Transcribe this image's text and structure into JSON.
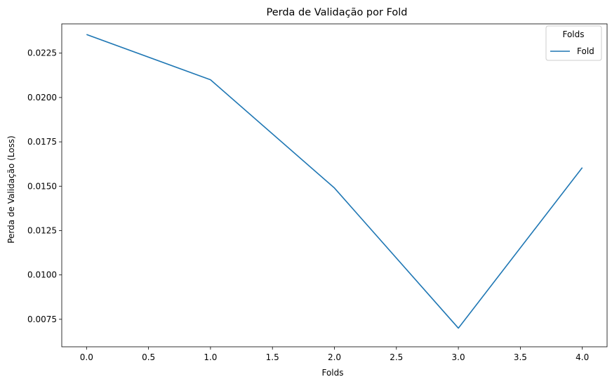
{
  "chart_data": {
    "type": "line",
    "title": "Perda de Validação por Fold",
    "xlabel": "Folds",
    "ylabel": "Perda de Validação (Loss)",
    "xlim": [
      -0.2,
      4.2
    ],
    "ylim": [
      0.00595,
      0.02415
    ],
    "x_ticks": [
      0.0,
      0.5,
      1.0,
      1.5,
      2.0,
      2.5,
      3.0,
      3.5,
      4.0
    ],
    "x_tick_labels": [
      "0.0",
      "0.5",
      "1.0",
      "1.5",
      "2.0",
      "2.5",
      "3.0",
      "3.5",
      "4.0"
    ],
    "y_ticks": [
      0.0075,
      0.01,
      0.0125,
      0.015,
      0.0175,
      0.02,
      0.0225
    ],
    "y_tick_labels": [
      "0.0075",
      "0.0100",
      "0.0125",
      "0.0150",
      "0.0175",
      "0.0200",
      "0.0225"
    ],
    "grid": false,
    "legend": {
      "title": "Folds",
      "placement": "top-right"
    },
    "series": [
      {
        "name": "Fold",
        "color": "#1f77b4",
        "x": [
          0,
          1,
          2,
          3,
          4
        ],
        "values": [
          0.02355,
          0.021,
          0.0149,
          0.007,
          0.01605
        ]
      }
    ]
  }
}
